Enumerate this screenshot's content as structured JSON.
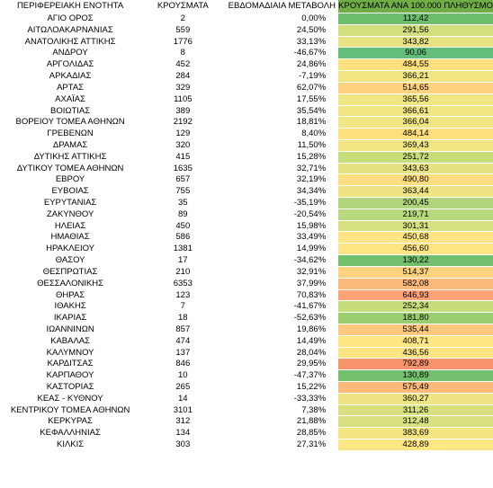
{
  "headers": [
    "ΠΕΡΙΦΕΡΕΙΑΚΗ ΕΝΟΤΗΤΑ",
    "ΚΡΟΥΣΜΑΤΑ",
    "ΕΒΔΟΜΑΔΙΑΙΑ ΜΕΤΑΒΟΛΗ",
    "ΚΡΟΥΣΜΑΤΑ ΑΝΑ 100.000 ΠΛΗΘΥΣΜΟ"
  ],
  "header_color": "#70ad47",
  "rows": [
    {
      "region": "ΑΓΙΟ ΟΡΟΣ",
      "cases": "2",
      "change": "0,00%",
      "per100k": "112,42",
      "color": "#6cbe6c"
    },
    {
      "region": "ΑΙΤΩΛΟΑΚΑΡΝΑΝΙΑΣ",
      "cases": "559",
      "change": "24,50%",
      "per100k": "291,56",
      "color": "#d3df7d"
    },
    {
      "region": "ΑΝΑΤΟΛΙΚΗΣ ΑΤΤΙΚΗΣ",
      "cases": "1776",
      "change": "33,13%",
      "per100k": "343,82",
      "color": "#e6e282"
    },
    {
      "region": "ΑΝΔΡΟΥ",
      "cases": "8",
      "change": "-46,67%",
      "per100k": "90,06",
      "color": "#63be7b"
    },
    {
      "region": "ΑΡΓΟΛΙΔΑΣ",
      "cases": "452",
      "change": "24,86%",
      "per100k": "484,55",
      "color": "#fedf7e"
    },
    {
      "region": "ΑΡΚΑΔΙΑΣ",
      "cases": "284",
      "change": "-7,19%",
      "per100k": "366,21",
      "color": "#f0e483"
    },
    {
      "region": "ΑΡΤΑΣ",
      "cases": "329",
      "change": "62,07%",
      "per100k": "514,65",
      "color": "#fed27f"
    },
    {
      "region": "ΑΧΑΪΑΣ",
      "cases": "1105",
      "change": "17,55%",
      "per100k": "365,56",
      "color": "#f0e483"
    },
    {
      "region": "ΒΟΙΩΤΙΑΣ",
      "cases": "389",
      "change": "35,54%",
      "per100k": "366,61",
      "color": "#f0e483"
    },
    {
      "region": "ΒΟΡΕΙΟΥ ΤΟΜΕΑ ΑΘΗΝΩΝ",
      "cases": "2192",
      "change": "18,81%",
      "per100k": "366,04",
      "color": "#f0e483"
    },
    {
      "region": "ΓΡΕΒΕΝΩΝ",
      "cases": "129",
      "change": "8,40%",
      "per100k": "484,14",
      "color": "#fedf7e"
    },
    {
      "region": "ΔΡΑΜΑΣ",
      "cases": "320",
      "change": "11,50%",
      "per100k": "369,43",
      "color": "#f0e483"
    },
    {
      "region": "ΔΥΤΙΚΗΣ ΑΤΤΙΚΗΣ",
      "cases": "415",
      "change": "15,28%",
      "per100k": "251,72",
      "color": "#c7dc7b"
    },
    {
      "region": "ΔΥΤΙΚΟΥ ΤΟΜΕΑ ΑΘΗΝΩΝ",
      "cases": "1635",
      "change": "32,71%",
      "per100k": "343,63",
      "color": "#e6e282"
    },
    {
      "region": "ΕΒΡΟΥ",
      "cases": "657",
      "change": "32,19%",
      "per100k": "490,80",
      "color": "#fedd7e"
    },
    {
      "region": "ΕΥΒΟΙΑΣ",
      "cases": "755",
      "change": "34,34%",
      "per100k": "363,44",
      "color": "#efe483"
    },
    {
      "region": "ΕΥΡΥΤΑΝΙΑΣ",
      "cases": "35",
      "change": "-35,19%",
      "per100k": "200,45",
      "color": "#b0d57d"
    },
    {
      "region": "ΖΑΚΥΝΘΟΥ",
      "cases": "89",
      "change": "-20,54%",
      "per100k": "219,71",
      "color": "#b8d87d"
    },
    {
      "region": "ΗΛΕΙΑΣ",
      "cases": "450",
      "change": "15,98%",
      "per100k": "301,31",
      "color": "#d7e07f"
    },
    {
      "region": "ΗΜΑΘΙΑΣ",
      "cases": "586",
      "change": "33,49%",
      "per100k": "450,68",
      "color": "#fee583"
    },
    {
      "region": "ΗΡΑΚΛΕΙΟΥ",
      "cases": "1381",
      "change": "14,99%",
      "per100k": "456,60",
      "color": "#fee482"
    },
    {
      "region": "ΘΑΣΟΥ",
      "cases": "17",
      "change": "-34,62%",
      "per100k": "130,22",
      "color": "#72c06d"
    },
    {
      "region": "ΘΕΣΠΡΩΤΙΑΣ",
      "cases": "210",
      "change": "32,91%",
      "per100k": "514,37",
      "color": "#fed27f"
    },
    {
      "region": "ΘΕΣΣΑΛΟΝΙΚΗΣ",
      "cases": "6353",
      "change": "37,99%",
      "per100k": "582,08",
      "color": "#fdb87b"
    },
    {
      "region": "ΘΗΡΑΣ",
      "cases": "123",
      "change": "70,83%",
      "per100k": "646,93",
      "color": "#fba377"
    },
    {
      "region": "ΙΘΑΚΗΣ",
      "cases": "7",
      "change": "-41,67%",
      "per100k": "252,34",
      "color": "#c7dc7b"
    },
    {
      "region": "ΙΚΑΡΙΑΣ",
      "cases": "18",
      "change": "-52,63%",
      "per100k": "181,80",
      "color": "#9acd6f"
    },
    {
      "region": "ΙΩΑΝΝΙΝΩΝ",
      "cases": "857",
      "change": "19,86%",
      "per100k": "535,44",
      "color": "#fec97d"
    },
    {
      "region": "ΚΑΒΑΛΑΣ",
      "cases": "474",
      "change": "14,49%",
      "per100k": "408,71",
      "color": "#fee683"
    },
    {
      "region": "ΚΑΛΥΜΝΟΥ",
      "cases": "137",
      "change": "28,04%",
      "per100k": "436,56",
      "color": "#fee482"
    },
    {
      "region": "ΚΑΡΔΙΤΣΑΣ",
      "cases": "846",
      "change": "29,95%",
      "per100k": "792,89",
      "color": "#f8946c"
    },
    {
      "region": "ΚΑΡΠΑΘΟΥ",
      "cases": "10",
      "change": "-47,37%",
      "per100k": "130,89",
      "color": "#72c06d"
    },
    {
      "region": "ΚΑΣΤΟΡΙΑΣ",
      "cases": "265",
      "change": "15,22%",
      "per100k": "575,49",
      "color": "#fdba7b"
    },
    {
      "region": "ΚΕΑΣ - ΚΥΘΝΟΥ",
      "cases": "14",
      "change": "-33,33%",
      "per100k": "360,27",
      "color": "#eee483"
    },
    {
      "region": "ΚΕΝΤΡΙΚΟΥ ΤΟΜΕΑ ΑΘΗΝΩΝ",
      "cases": "3101",
      "change": "7,38%",
      "per100k": "311,26",
      "color": "#d9e07f"
    },
    {
      "region": "ΚΕΡΚΥΡΑΣ",
      "cases": "312",
      "change": "21,88%",
      "per100k": "312,48",
      "color": "#d9e07f"
    },
    {
      "region": "ΚΕΦΑΛΛΗΝΙΑΣ",
      "cases": "134",
      "change": "28,85%",
      "per100k": "383,69",
      "color": "#f4e583"
    },
    {
      "region": "ΚΙΛΚΙΣ",
      "cases": "303",
      "change": "27,31%",
      "per100k": "428,89",
      "color": "#fee683"
    }
  ]
}
